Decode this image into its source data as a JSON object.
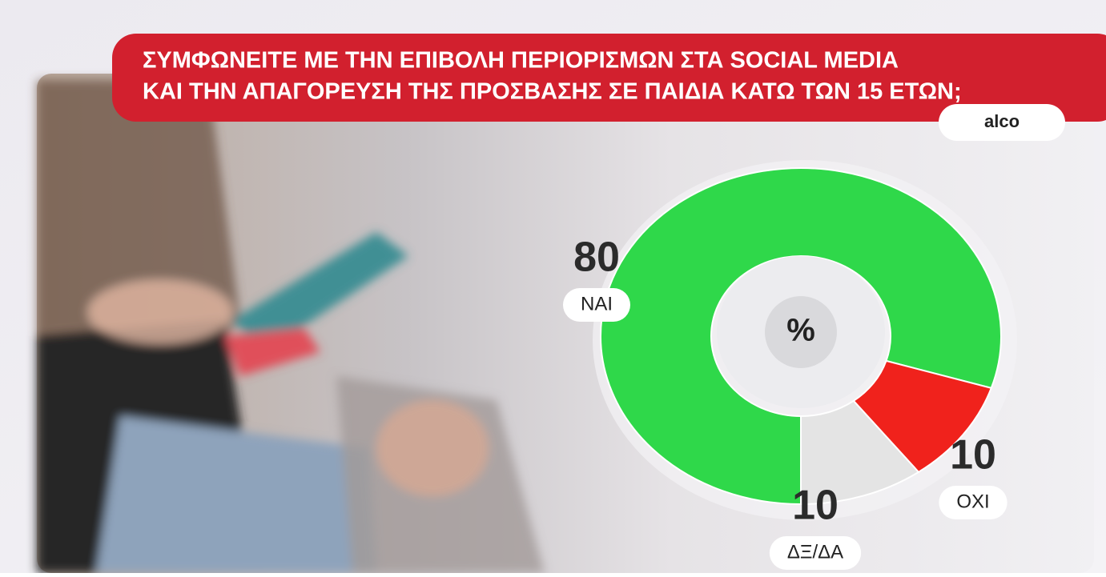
{
  "chart_data": {
    "type": "donut",
    "title_lines": [
      "ΣΥΜΦΩΝΕΙΤΕ ΜΕ ΤΗΝ ΕΠΙΒΟΛΗ ΠΕΡΙΟΡΙΣΜΩΝ ΣΤΑ SOCIAL MEDIA",
      "ΚΑΙ ΤΗΝ ΑΠΑΓΟΡΕΥΣΗ ΤΗΣ ΠΡΟΣΒΑΣΗΣ ΣΕ ΠΑΙΔΙΑ ΚΑΤΩ ΤΩΝ 15 ΕΤΩΝ;"
    ],
    "source": "alco",
    "center_label": "%",
    "categories": [
      "ΝΑΙ",
      "ΟΧΙ",
      "ΔΞ/ΔΑ"
    ],
    "values": [
      80,
      10,
      10
    ],
    "colors": [
      "#2fd84a",
      "#f0221c",
      "#e4e4e4"
    ]
  }
}
